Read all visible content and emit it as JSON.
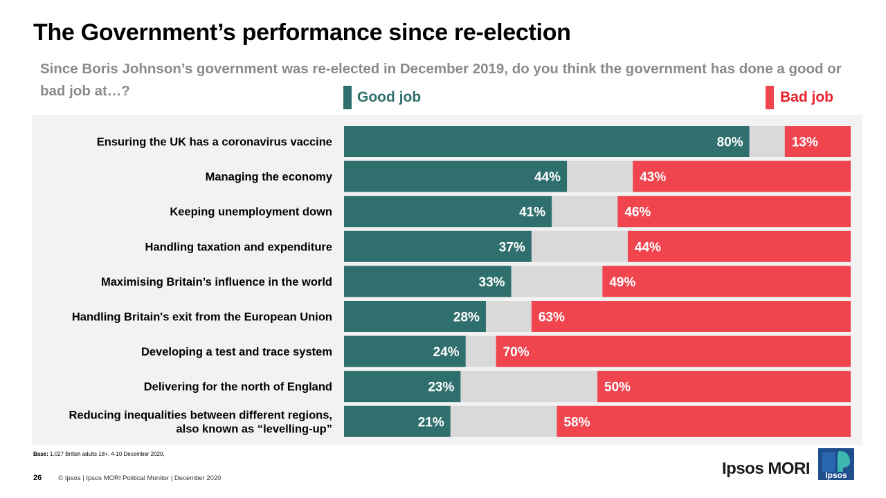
{
  "title": "The Government’s performance since re-election",
  "question": "Since Boris Johnson’s government was re-elected in December 2019, do you think the government has done a good or bad job at…?",
  "legend": {
    "good": "Good job",
    "bad": "Bad job"
  },
  "colors": {
    "good": "#2f6f6d",
    "bad": "#f0454f",
    "neutral": "#d9d9d9",
    "panel": "#f2f2f2",
    "bad_text": "#e8202a"
  },
  "chart_data": {
    "type": "bar",
    "orientation": "horizontal-stacked",
    "title": "The Government’s performance since re-election",
    "xlim": [
      0,
      100
    ],
    "categories": [
      "Ensuring the UK has a coronavirus vaccine",
      "Managing the economy",
      "Keeping unemployment down",
      "Handling taxation and expenditure",
      "Maximising Britain’s influence in the world",
      "Handling Britain's exit from the European Union",
      "Developing a test and trace system",
      "Delivering for the north of England",
      "Reducing inequalities between different regions, also known as “levelling-up”"
    ],
    "series": [
      {
        "name": "Good job",
        "values": [
          80,
          44,
          41,
          37,
          33,
          28,
          24,
          23,
          21
        ]
      },
      {
        "name": "Bad job",
        "values": [
          13,
          43,
          46,
          44,
          49,
          63,
          70,
          50,
          58
        ]
      }
    ]
  },
  "base_label": "Base:",
  "base_text": " 1,027 British adults 18+, 4-10 December 2020,",
  "page_number": "26",
  "footer_text": "© Ipsos | Ipsos MORI Political Monitor | December 2020",
  "brand": "Ipsos MORI",
  "logo_text": "Ipsos"
}
